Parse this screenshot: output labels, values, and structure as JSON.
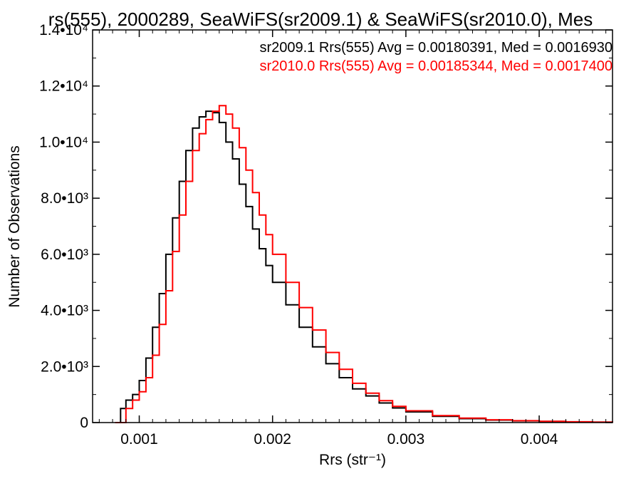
{
  "chart_data": {
    "type": "line",
    "title": "rs(555), 2000289, SeaWiFS(sr2009.1) & SeaWiFS(sr2010.0), Mes",
    "xlabel": "Rrs (str⁻¹)",
    "ylabel": "Number of Observations",
    "xlim": [
      0.00065,
      0.00455
    ],
    "ylim": [
      0,
      14000
    ],
    "x_ticks": [
      {
        "value": 0.001,
        "label": "0.001"
      },
      {
        "value": 0.002,
        "label": "0.002"
      },
      {
        "value": 0.003,
        "label": "0.003"
      },
      {
        "value": 0.004,
        "label": "0.004"
      }
    ],
    "y_ticks": [
      {
        "value": 0,
        "label": "0"
      },
      {
        "value": 2000,
        "label": "2.0•10³"
      },
      {
        "value": 4000,
        "label": "4.0•10³"
      },
      {
        "value": 6000,
        "label": "6.0•10³"
      },
      {
        "value": 8000,
        "label": "8.0•10³"
      },
      {
        "value": 10000,
        "label": "1.0•10⁴"
      },
      {
        "value": 12000,
        "label": "1.2•10⁴"
      },
      {
        "value": 14000,
        "label": "1.4•10⁴"
      }
    ],
    "grid": false,
    "legend_placement": "top-right",
    "series": [
      {
        "name": "sr2009.1",
        "legend_text": "sr2009.1 Rrs(555) Avg = 0.00180391, Med = 0.0016930",
        "color": "#000000",
        "x": [
          0.00082,
          0.00086,
          0.0009,
          0.00095,
          0.001,
          0.00105,
          0.0011,
          0.00115,
          0.0012,
          0.00125,
          0.0013,
          0.00135,
          0.0014,
          0.00145,
          0.0015,
          0.00155,
          0.0016,
          0.00165,
          0.0017,
          0.00175,
          0.0018,
          0.00185,
          0.0019,
          0.00195,
          0.002,
          0.0021,
          0.0022,
          0.0023,
          0.0024,
          0.0025,
          0.0026,
          0.0027,
          0.0028,
          0.0029,
          0.003,
          0.0032,
          0.0034,
          0.0036,
          0.0038,
          0.004,
          0.0042,
          0.0044,
          0.00455
        ],
        "y": [
          0,
          500,
          800,
          1000,
          1500,
          2300,
          3400,
          4600,
          6000,
          7300,
          8600,
          9700,
          10500,
          10900,
          11100,
          11050,
          10700,
          10000,
          9400,
          8500,
          7700,
          6900,
          6200,
          5600,
          5000,
          4200,
          3400,
          2700,
          2100,
          1600,
          1200,
          950,
          700,
          520,
          380,
          220,
          140,
          90,
          60,
          40,
          25,
          15,
          0
        ]
      },
      {
        "name": "sr2010.0",
        "legend_text": "sr2010.0 Rrs(555) Avg = 0.00185344, Med = 0.0017400",
        "color": "#ff0000",
        "x": [
          0.00082,
          0.00086,
          0.0009,
          0.00095,
          0.001,
          0.00105,
          0.0011,
          0.00115,
          0.0012,
          0.00125,
          0.0013,
          0.00135,
          0.0014,
          0.00145,
          0.0015,
          0.00155,
          0.0016,
          0.00165,
          0.0017,
          0.00175,
          0.0018,
          0.00185,
          0.0019,
          0.00195,
          0.002,
          0.0021,
          0.0022,
          0.0023,
          0.0024,
          0.0025,
          0.0026,
          0.0027,
          0.0028,
          0.0029,
          0.003,
          0.0032,
          0.0034,
          0.0036,
          0.0038,
          0.004,
          0.0042,
          0.0044,
          0.00455
        ],
        "y": [
          0,
          0,
          500,
          800,
          1100,
          1600,
          2400,
          3500,
          4700,
          6100,
          7400,
          8600,
          9700,
          10300,
          10800,
          11100,
          11300,
          11000,
          10500,
          9800,
          9000,
          8200,
          7400,
          6700,
          6000,
          5000,
          4100,
          3300,
          2500,
          1900,
          1400,
          1050,
          780,
          580,
          420,
          250,
          160,
          100,
          65,
          45,
          28,
          16,
          0
        ]
      }
    ]
  }
}
